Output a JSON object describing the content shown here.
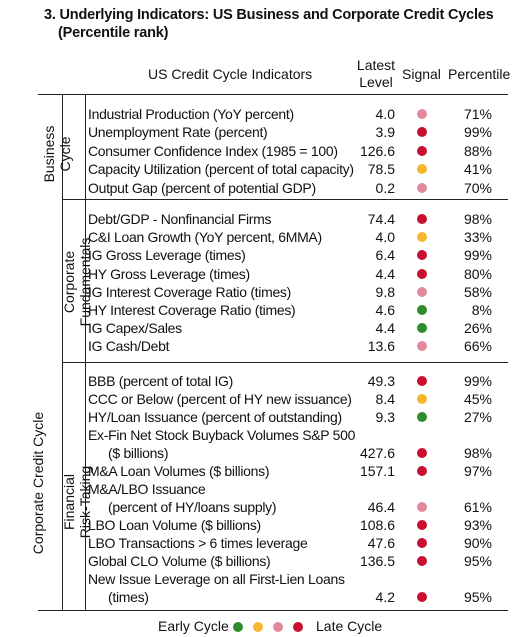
{
  "title": {
    "line1": "3. Underlying Indicators: US Business and Corporate Credit Cycles",
    "line2": "(Percentile rank)"
  },
  "headers": {
    "indicators": "US Credit Cycle Indicators",
    "latest_line1": "Latest",
    "latest_line2": "Level",
    "signal": "Signal",
    "percentile": "Percentile"
  },
  "colors": {
    "green": "#2e8b2e",
    "yellow": "#f5b731",
    "pink": "#e0899b",
    "red": "#c8102e"
  },
  "sections": {
    "business": {
      "line1": "Business",
      "line2": "Cycle"
    },
    "corporate_credit": "Corporate Credit Cycle",
    "fundamentals": {
      "line1": "Corporate",
      "line2": "Fundamentals"
    },
    "risk_taking": {
      "line1": "Financial",
      "line2": "Risk-Taking"
    }
  },
  "business_rows": [
    {
      "label": "Industrial Production (YoY percent)",
      "level": "4.0",
      "signal": "pink",
      "percentile": "71%"
    },
    {
      "label": "Unemployment Rate (percent)",
      "level": "3.9",
      "signal": "red",
      "percentile": "99%"
    },
    {
      "label": "Consumer Confidence Index (1985 = 100)",
      "level": "126.6",
      "signal": "red",
      "percentile": "88%"
    },
    {
      "label": "Capacity Utilization (percent of total capacity)",
      "level": "78.5",
      "signal": "yellow",
      "percentile": "41%"
    },
    {
      "label": "Output Gap (percent of potential GDP)",
      "level": "0.2",
      "signal": "pink",
      "percentile": "70%"
    }
  ],
  "fundamentals_rows": [
    {
      "label": "Debt/GDP - Nonfinancial Firms",
      "level": "74.4",
      "signal": "red",
      "percentile": "98%"
    },
    {
      "label": "C&I Loan Growth (YoY percent, 6MMA)",
      "level": "4.0",
      "signal": "yellow",
      "percentile": "33%"
    },
    {
      "label": "IG Gross Leverage (times)",
      "level": "6.4",
      "signal": "red",
      "percentile": "99%"
    },
    {
      "label": "HY Gross Leverage (times)",
      "level": "4.4",
      "signal": "red",
      "percentile": "80%"
    },
    {
      "label": "IG Interest Coverage Ratio (times)",
      "level": "9.8",
      "signal": "pink",
      "percentile": "58%"
    },
    {
      "label": "HY Interest Coverage Ratio (times)",
      "level": "4.6",
      "signal": "green",
      "percentile": "8%"
    },
    {
      "label": "IG Capex/Sales",
      "level": "4.4",
      "signal": "green",
      "percentile": "26%"
    },
    {
      "label": "IG Cash/Debt",
      "level": "13.6",
      "signal": "pink",
      "percentile": "66%"
    }
  ],
  "risk_rows": [
    {
      "label": "BBB (percent of total IG)",
      "level": "49.3",
      "signal": "red",
      "percentile": "99%"
    },
    {
      "label": "CCC or Below (percent of HY new issuance)",
      "level": "8.4",
      "signal": "yellow",
      "percentile": "45%"
    },
    {
      "label": "HY/Loan Issuance (percent of outstanding)",
      "level": "9.3",
      "signal": "green",
      "percentile": "27%"
    },
    {
      "label": "Ex-Fin Net Stock Buyback Volumes S&P 500",
      "level": "",
      "signal": "",
      "percentile": ""
    },
    {
      "label": "($ billions)",
      "indent": true,
      "level": "427.6",
      "signal": "red",
      "percentile": "98%"
    },
    {
      "label": "M&A Loan Volumes ($ billions)",
      "level": "157.1",
      "signal": "red",
      "percentile": "97%"
    },
    {
      "label": "M&A/LBO Issuance",
      "level": "",
      "signal": "",
      "percentile": ""
    },
    {
      "label": "(percent of HY/loans supply)",
      "indent": true,
      "level": "46.4",
      "signal": "pink",
      "percentile": "61%"
    },
    {
      "label": "LBO Loan Volume ($ billions)",
      "level": "108.6",
      "signal": "red",
      "percentile": "93%"
    },
    {
      "label": "LBO Transactions > 6 times leverage",
      "level": "47.6",
      "signal": "red",
      "percentile": "90%"
    },
    {
      "label": "Global CLO Volume ($ billions)",
      "level": "136.5",
      "signal": "red",
      "percentile": "95%"
    },
    {
      "label": "New Issue Leverage on all First-Lien Loans",
      "level": "",
      "signal": "",
      "percentile": ""
    },
    {
      "label": "(times)",
      "indent": true,
      "level": "4.2",
      "signal": "red",
      "percentile": "95%"
    }
  ],
  "legend": {
    "early": "Early Cycle",
    "late": "Late Cycle",
    "dots": [
      "green",
      "yellow",
      "pink",
      "red"
    ]
  }
}
